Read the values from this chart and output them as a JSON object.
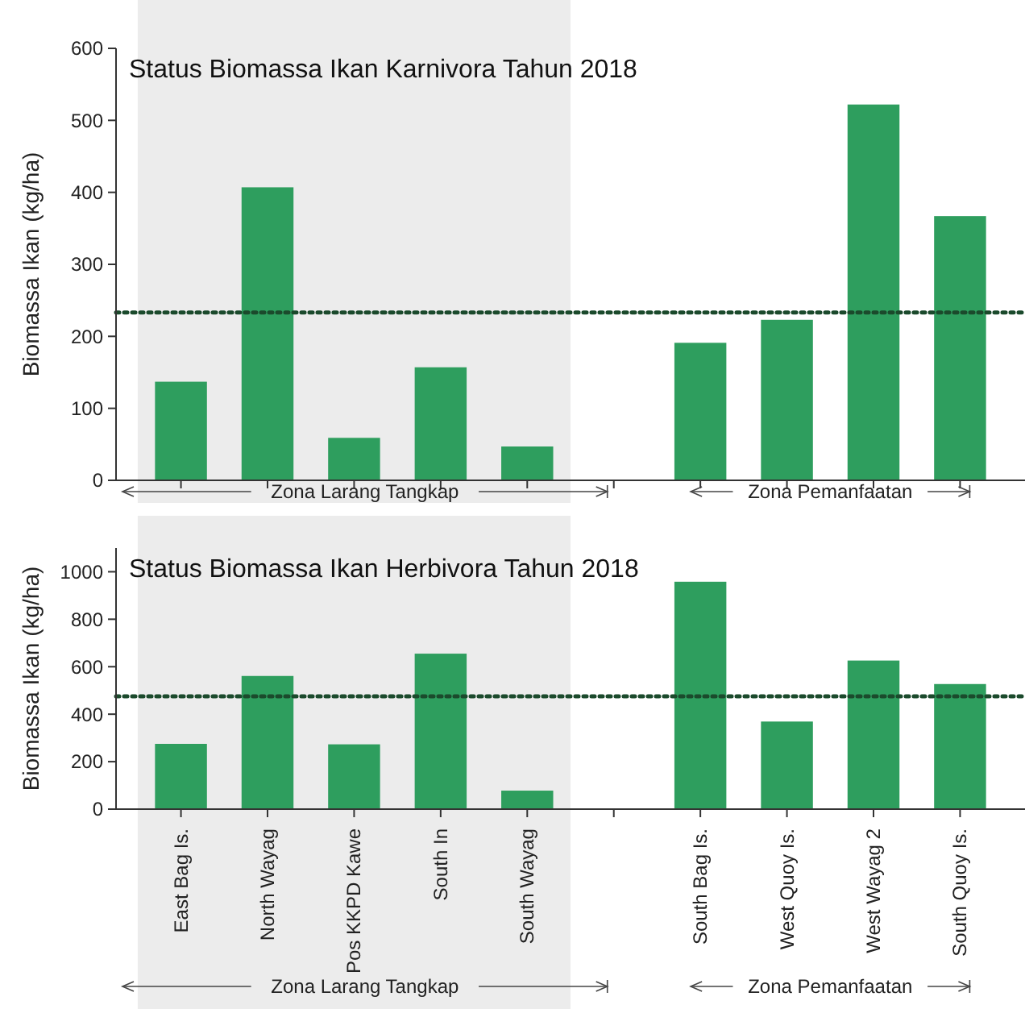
{
  "chart_data": [
    {
      "type": "bar",
      "title": "Status Biomassa Ikan Karnivora Tahun 2018",
      "ylabel": "Biomassa Ikan (kg/ha)",
      "categories": [
        "East Bag Is.",
        "North Wayag",
        "Pos KKPD Kawe",
        "South In",
        "South Wayag",
        null,
        "South Bag Is.",
        "West Quoy Is.",
        "West Wayag 2",
        "South Quoy Is."
      ],
      "values": [
        137,
        407,
        59,
        157,
        47,
        null,
        191,
        223,
        522,
        367
      ],
      "color": "#2e9e5e",
      "ylim": [
        0,
        600
      ],
      "yticks": [
        0,
        100,
        200,
        300,
        400,
        500,
        600
      ],
      "tick_labels": "y",
      "ref_lines": [
        {
          "axis": "y",
          "value": 233,
          "color": "#1b4a2c",
          "line_style": "dotted"
        }
      ],
      "bands": [
        {
          "axis": "x",
          "from": "East Bag Is.",
          "to": "South Wayag",
          "color": "#ececec"
        }
      ],
      "annotations": [
        "Zona Larang Tangkap",
        "Zona Pemanfaatan"
      ]
    },
    {
      "type": "bar",
      "title": "Status Biomassa Ikan Herbivora Tahun 2018",
      "ylabel": "Biomassa Ikan (kg/ha)",
      "categories": [
        "East Bag Is.",
        "North Wayag",
        "Pos KKPD Kawe",
        "South In",
        "South Wayag",
        null,
        "South Bag Is.",
        "West Quoy Is.",
        "West Wayag 2",
        "South Quoy Is."
      ],
      "values": [
        275,
        561,
        273,
        655,
        78,
        null,
        958,
        369,
        626,
        527
      ],
      "color": "#2e9e5e",
      "ylim": [
        0,
        1100
      ],
      "yticks": [
        0,
        200,
        400,
        600,
        800,
        1000
      ],
      "ref_lines": [
        {
          "axis": "y",
          "value": 475,
          "color": "#1b4a2c",
          "line_style": "dotted"
        }
      ],
      "bands": [
        {
          "axis": "x",
          "from": "East Bag Is.",
          "to": "South Wayag",
          "color": "#ececec"
        }
      ],
      "annotations": [
        "Zona Larang Tangkap",
        "Zona Pemanfaatan"
      ]
    }
  ]
}
